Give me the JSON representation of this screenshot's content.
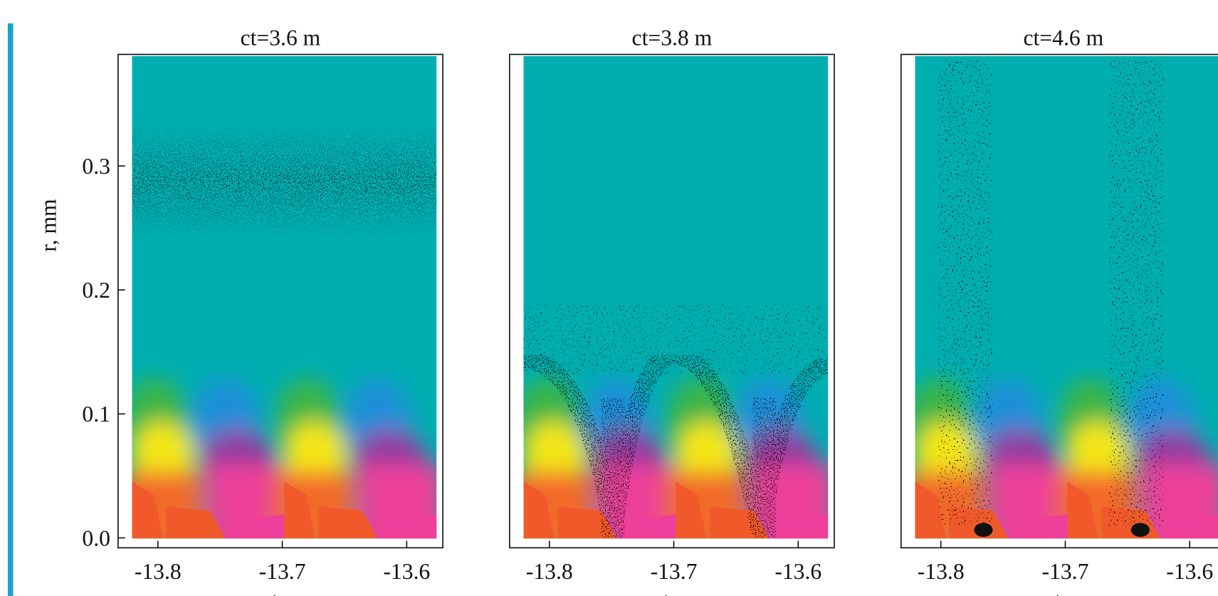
{
  "chart_data": [
    {
      "type": "scatter",
      "title": "ct=3.6 m",
      "xlabel": "z-ct, cm",
      "ylabel": "r, mm",
      "xlim": [
        -13.832,
        -13.571
      ],
      "ylim": [
        -0.008,
        0.39
      ],
      "xticks": [
        -13.8,
        -13.7,
        -13.6
      ],
      "yticks": [
        {
          "value": 0,
          "label": "0.0"
        },
        0.1,
        0.2,
        0.3
      ]
    },
    {
      "type": "scatter",
      "title": "ct=3.8 m",
      "xlabel": "z-ct, cm",
      "xlim": [
        -13.832,
        -13.571
      ],
      "ylim": [
        -0.008,
        0.39
      ],
      "xticks": [
        -13.8,
        -13.7,
        -13.6
      ]
    },
    {
      "type": "scatter",
      "title": "ct=4.6 m",
      "xlabel": "z-ct, cm",
      "xlim": [
        -13.832,
        -13.571
      ],
      "ylim": [
        -0.008,
        0.39
      ],
      "xticks": [
        -13.8,
        -13.7,
        -13.6
      ]
    }
  ]
}
